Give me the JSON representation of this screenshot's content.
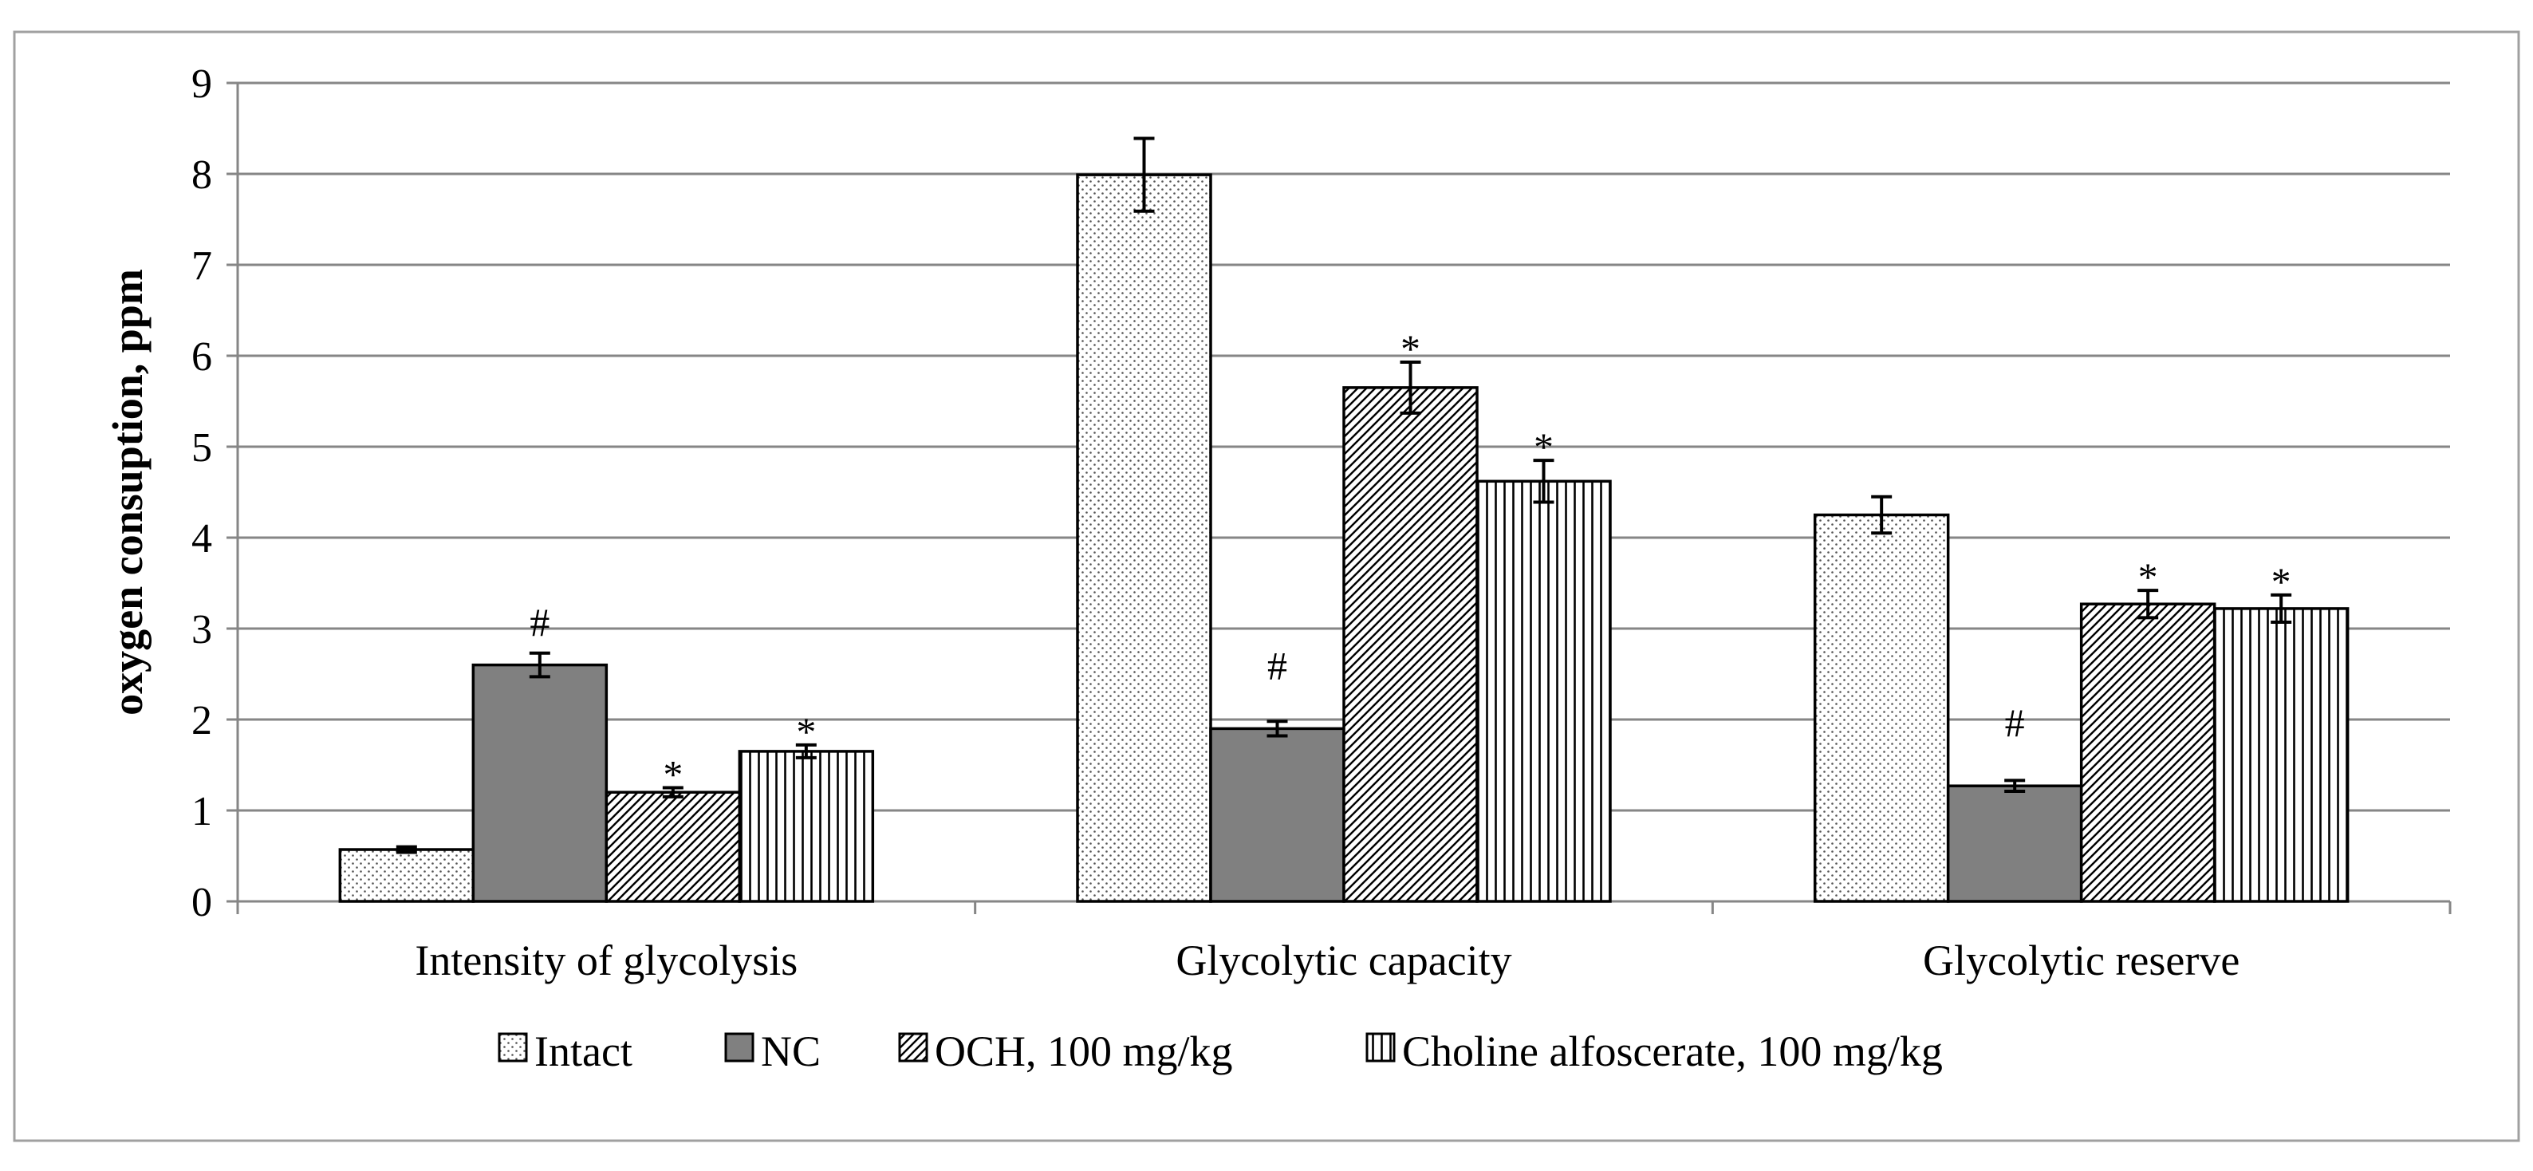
{
  "chart_data": {
    "type": "bar",
    "title": "",
    "xlabel": "",
    "ylabel": "oxygen consuption, ppm",
    "ylim": [
      0,
      9
    ],
    "yticks": [
      "0",
      "1",
      "2",
      "3",
      "4",
      "5",
      "6",
      "7",
      "8",
      "9"
    ],
    "grid": true,
    "legend_position": "bottom",
    "categories": [
      "Intensity of glycolysis",
      "Glycolytic capacity",
      "Glycolytic reserve"
    ],
    "series": [
      {
        "name": "Intact",
        "pattern": "dots",
        "values": [
          0.57,
          7.99,
          4.25
        ],
        "errors": [
          0.03,
          0.4,
          0.2
        ],
        "annotations": [
          "",
          "",
          ""
        ]
      },
      {
        "name": "NC",
        "pattern": "solid",
        "values": [
          2.6,
          1.9,
          1.27
        ],
        "errors": [
          0.13,
          0.08,
          0.06
        ],
        "annotations": [
          "#",
          "#",
          "#"
        ]
      },
      {
        "name": "OCH, 100 mg/kg",
        "pattern": "diagonal",
        "values": [
          1.2,
          5.65,
          3.27
        ],
        "errors": [
          0.05,
          0.28,
          0.15
        ],
        "annotations": [
          "*",
          "*",
          "*"
        ]
      },
      {
        "name": "Choline alfoscerate, 100 mg/kg",
        "pattern": "vertical",
        "values": [
          1.65,
          4.62,
          3.22
        ],
        "errors": [
          0.07,
          0.23,
          0.15
        ],
        "annotations": [
          "*",
          "*",
          "*"
        ]
      }
    ]
  },
  "colors": {
    "nc_fill": "#808080",
    "grid": "#868686",
    "border": "#a0a0a0"
  }
}
